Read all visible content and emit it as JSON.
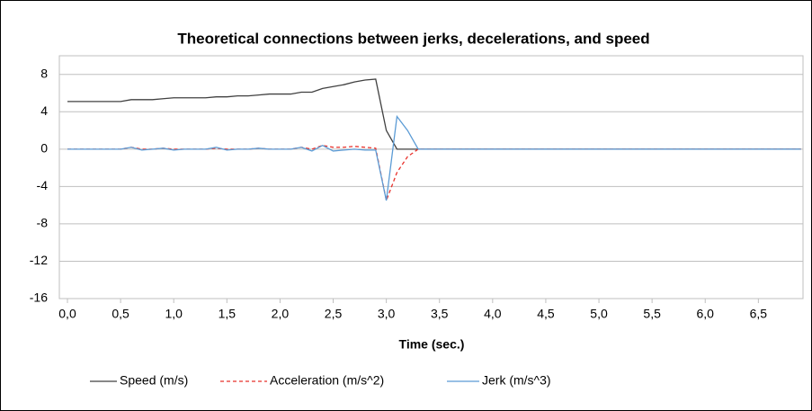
{
  "chart_data": {
    "type": "line",
    "title": "Theoretical connections between jerks, decelerations, and speed",
    "x_label": "Time (sec.)",
    "x": [
      0,
      0.1,
      0.2,
      0.3,
      0.4,
      0.5,
      0.6,
      0.7,
      0.8,
      0.9,
      1,
      1.1,
      1.2,
      1.3,
      1.4,
      1.5,
      1.6,
      1.7,
      1.8,
      1.9,
      2,
      2.1,
      2.2,
      2.3,
      2.4,
      2.5,
      2.6,
      2.7,
      2.8,
      2.9,
      3,
      3.1,
      3.2,
      3.3,
      3.4,
      3.5,
      3.6,
      3.7,
      3.8,
      3.9,
      4,
      4.1,
      4.2,
      4.3,
      4.4,
      4.5,
      4.6,
      4.7,
      4.8,
      4.9,
      5,
      5.1,
      5.2,
      5.3,
      5.4,
      5.5,
      5.6,
      5.7,
      5.8,
      5.9,
      6,
      6.1,
      6.2,
      6.3,
      6.4,
      6.5,
      6.6,
      6.7,
      6.8,
      6.9
    ],
    "series": [
      {
        "name": "Speed (m/s)",
        "color": "#404040",
        "style": "solid",
        "values": [
          5.1,
          5.1,
          5.1,
          5.1,
          5.1,
          5.1,
          5.3,
          5.3,
          5.3,
          5.4,
          5.5,
          5.5,
          5.5,
          5.5,
          5.6,
          5.6,
          5.7,
          5.7,
          5.8,
          5.9,
          5.9,
          5.9,
          6.1,
          6.1,
          6.5,
          6.7,
          6.9,
          7.2,
          7.4,
          7.5,
          2.0,
          0,
          0,
          0,
          0,
          0,
          0,
          0,
          0,
          0,
          0,
          0,
          0,
          0,
          0,
          0,
          0,
          0,
          0,
          0,
          0,
          0,
          0,
          0,
          0,
          0,
          0,
          0,
          0,
          0,
          0,
          0,
          0,
          0,
          0,
          0,
          0,
          0,
          0,
          0
        ]
      },
      {
        "name": "Acceleration (m/s^2)",
        "color": "#e8302a",
        "style": "dashed",
        "values": [
          0,
          0,
          0,
          0,
          0,
          0,
          0.2,
          0,
          0,
          0.1,
          0,
          0,
          0,
          0,
          0.1,
          0,
          0,
          0,
          0.1,
          0,
          0,
          0,
          0.2,
          0,
          0.4,
          0.2,
          0.2,
          0.3,
          0.2,
          0.1,
          -5.5,
          -2.5,
          -0.8,
          0,
          0,
          0,
          0,
          0,
          0,
          0,
          0,
          0,
          0,
          0,
          0,
          0,
          0,
          0,
          0,
          0,
          0,
          0,
          0,
          0,
          0,
          0,
          0,
          0,
          0,
          0,
          0,
          0,
          0,
          0,
          0,
          0,
          0,
          0,
          0,
          0
        ]
      },
      {
        "name": "Jerk (m/s^3)",
        "color": "#5b9bd5",
        "style": "solid",
        "values": [
          0,
          0,
          0,
          0,
          0,
          0,
          0.2,
          -0.1,
          0,
          0.1,
          -0.1,
          0,
          0,
          0,
          0.2,
          -0.1,
          0,
          0,
          0.1,
          0,
          0,
          0,
          0.2,
          -0.2,
          0.4,
          -0.2,
          -0.1,
          0,
          -0.1,
          -0.1,
          -5.5,
          3.5,
          2.0,
          0,
          0,
          0,
          0,
          0,
          0,
          0,
          0,
          0,
          0,
          0,
          0,
          0,
          0,
          0,
          0,
          0,
          0,
          0,
          0,
          0,
          0,
          0,
          0,
          0,
          0,
          0,
          0,
          0,
          0,
          0,
          0,
          0,
          0,
          0,
          0,
          0
        ]
      }
    ],
    "xlim": [
      0,
      6.92
    ],
    "xticks": [
      {
        "value": 0,
        "label": "0,0"
      },
      {
        "value": 0.5,
        "label": "0,5"
      },
      {
        "value": 1,
        "label": "1,0"
      },
      {
        "value": 1.5,
        "label": "1,5"
      },
      {
        "value": 2,
        "label": "2,0"
      },
      {
        "value": 2.5,
        "label": "2,5"
      },
      {
        "value": 3,
        "label": "3,0"
      },
      {
        "value": 3.5,
        "label": "3,5"
      },
      {
        "value": 4,
        "label": "4,0"
      },
      {
        "value": 4.5,
        "label": "4,5"
      },
      {
        "value": 5,
        "label": "5,0"
      },
      {
        "value": 5.5,
        "label": "5,5"
      },
      {
        "value": 6,
        "label": "6,0"
      },
      {
        "value": 6.5,
        "label": "6,5"
      }
    ],
    "ylim": [
      -16,
      10
    ],
    "yticks": [
      8,
      4,
      0,
      -4,
      -8,
      -12,
      -16
    ],
    "grid": true,
    "legend": "bottom"
  }
}
